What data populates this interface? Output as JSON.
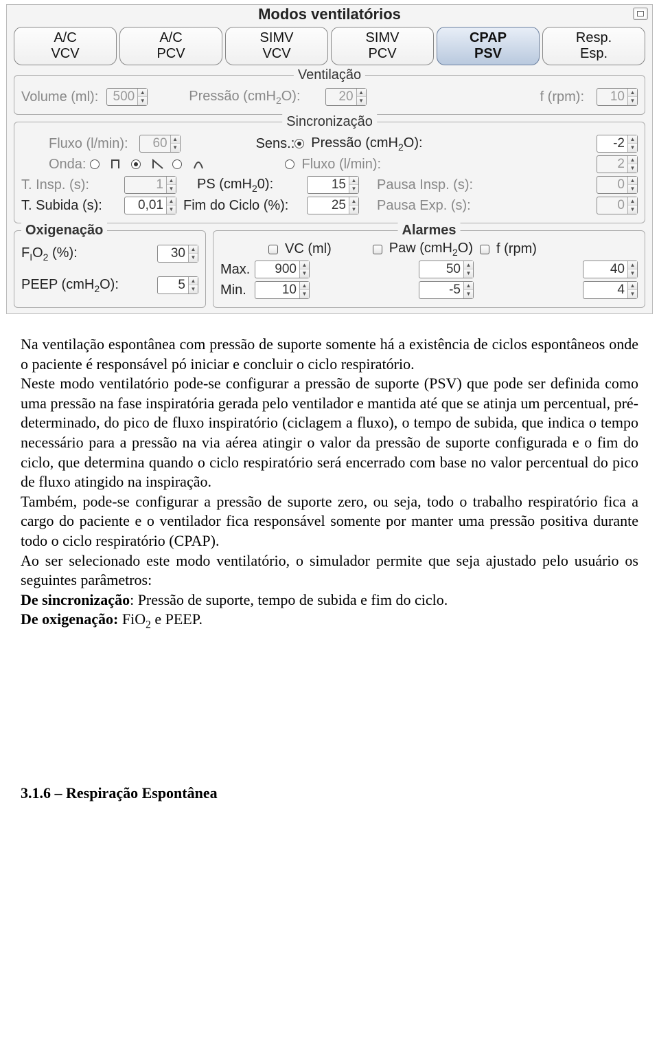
{
  "panel": {
    "title": "Modos ventilatórios",
    "tabs": [
      {
        "l1": "A/C",
        "l2": "VCV",
        "selected": false
      },
      {
        "l1": "A/C",
        "l2": "PCV",
        "selected": false
      },
      {
        "l1": "SIMV",
        "l2": "VCV",
        "selected": false
      },
      {
        "l1": "SIMV",
        "l2": "PCV",
        "selected": false
      },
      {
        "l1": "CPAP",
        "l2": "PSV",
        "selected": true
      },
      {
        "l1": "Resp.",
        "l2": "Esp.",
        "selected": false
      }
    ]
  },
  "ventilacao": {
    "title": "Ventilação",
    "volume_label": "Volume (ml):",
    "volume_val": "500",
    "volume_enabled": false,
    "pressao_label": "Pressão (cmH",
    "pressao_label2": "O):",
    "pressao_val": "20",
    "pressao_enabled": false,
    "f_label": "f (rpm):",
    "f_val": "10",
    "f_enabled": false
  },
  "sincro": {
    "title": "Sincronização",
    "fluxo_label": "Fluxo (l/min):",
    "fluxo_val": "60",
    "fluxo_enabled": false,
    "sens_label": "Sens.:",
    "sens_pressao_label": "Pressão (cmH",
    "sens_pressao_label2": "O):",
    "sens_pressao_val": "-2",
    "sens_pressao_selected": true,
    "onda_label": "Onda:",
    "onda_selected": "decel",
    "sens_fluxo_label": "Fluxo (l/min):",
    "sens_fluxo_val": "2",
    "sens_fluxo_selected": false,
    "tinsp_label": "T. Insp. (s):",
    "tinsp_val": "1",
    "tinsp_enabled": false,
    "ps_label": "PS (cmH",
    "ps_label2": "0):",
    "ps_val": "15",
    "ps_enabled": true,
    "pausa_insp_label": "Pausa Insp. (s):",
    "pausa_insp_val": "0",
    "pausa_insp_enabled": false,
    "tsubida_label": "T. Subida (s):",
    "tsubida_val": "0,01",
    "tsubida_enabled": true,
    "fimciclo_label": "Fim do Ciclo (%):",
    "fimciclo_val": "25",
    "fimciclo_enabled": true,
    "pausa_exp_label": "Pausa Exp. (s):",
    "pausa_exp_val": "0",
    "pausa_exp_enabled": false
  },
  "oxigen": {
    "title": "Oxigenação",
    "fio2_label_a": "F",
    "fio2_label_b": "O",
    "fio2_label_c": " (%):",
    "fio2_val": "30",
    "peep_label": "PEEP (cmH",
    "peep_label2": "O):",
    "peep_val": "5"
  },
  "alarmes": {
    "title": "Alarmes",
    "vc_label": "VC (ml)",
    "paw_label": "Paw (cmH",
    "paw_label2": "O)",
    "f_label": "f (rpm)",
    "max_label": "Max.",
    "min_label": "Min.",
    "vc_max": "900",
    "vc_min": "10",
    "paw_max": "50",
    "paw_min": "-5",
    "f_max": "40",
    "f_min": "4"
  },
  "article": {
    "p1": "Na ventilação espontânea com pressão de suporte somente há a existência de ciclos espontâneos onde o paciente é responsável pó iniciar e concluir o ciclo respiratório.",
    "p2": "Neste modo ventilatório pode-se configurar a pressão de suporte (PSV) que pode ser definida como uma pressão na fase inspiratória gerada pelo ventilador e mantida até que se atinja um percentual, pré-determinado, do pico de fluxo inspiratório (ciclagem a fluxo), o tempo de subida, que indica o tempo necessário para a pressão na via aérea atingir o valor da pressão de suporte configurada e o fim do ciclo, que determina quando o ciclo respiratório será encerrado com base no valor percentual do pico de fluxo atingido na inspiração.",
    "p3": "Também, pode-se configurar a pressão de suporte zero, ou seja, todo o trabalho respiratório fica a cargo do paciente e o ventilador fica responsável somente por manter uma pressão positiva durante todo o ciclo respiratório (CPAP).",
    "p4": "Ao ser selecionado este modo ventilatório, o simulador permite que seja ajustado pelo usuário os seguintes parâmetros:",
    "p5a": "De sincronização",
    "p5b": ": Pressão de suporte, tempo de subida e fim do ciclo.",
    "p6a": "De oxigenação: ",
    "p6b": "FiO",
    "p6c": " e PEEP.",
    "sec": "3.1.6 – Respiração Espontânea"
  }
}
